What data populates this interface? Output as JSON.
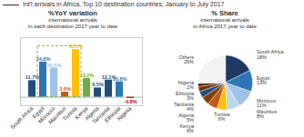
{
  "title": "Int'l arrivals in Africa, Top 10 destination countries, January to July 2017",
  "chart_data": [
    {
      "type": "bar",
      "title": "%YoY variation",
      "subtitle": [
        "international arrivals",
        "in each destination 2017 year to date"
      ],
      "categories": [
        "South Africa",
        "Egypt",
        "Morocco",
        "Mauritius",
        "Tunisia",
        "Kenya",
        "Algeria",
        "Tanzania",
        "Ethiopia",
        "Nigeria"
      ],
      "values": [
        11.7,
        24.8,
        20.5,
        3.6,
        33.5,
        13.2,
        6.5,
        12.1,
        10.8,
        -0.8
      ],
      "value_labels": [
        "11.7%",
        "24.8%",
        "20.5%",
        "3.6%",
        "33.5%",
        "13.2%",
        "6.5%",
        "12.1%",
        "10.8%",
        "-0.8%"
      ],
      "colors": [
        "#1f4e79",
        "#2e75b6",
        "#9dc3e6",
        "#c55a11",
        "#ffc000",
        "#70ad47",
        "#1f4e79",
        "#1f4e79",
        "#2e75b6",
        "#c00000"
      ],
      "ylim": [
        -6,
        42
      ],
      "data_labels": true,
      "tick_labels": "x",
      "annotations": [
        {
          "type": "box",
          "x": [
            "Egypt",
            "Tunisia"
          ],
          "y": [
            0,
            36
          ],
          "color": "#70ad47",
          "line_style": "dashed"
        }
      ]
    },
    {
      "type": "pie",
      "title": "% Share",
      "subtitle": [
        "international arrivals",
        "in Africa 2017 year to date"
      ],
      "categories": [
        "South Africa",
        "Egypt",
        "Morocco",
        "Mauritius",
        "Tunisia",
        "Kenya",
        "Algeria",
        "Tanzania",
        "Ethiopia",
        "Nigeria",
        "Others"
      ],
      "values": [
        18,
        13,
        11,
        8,
        6,
        6,
        5,
        4,
        3,
        2,
        26
      ],
      "value_labels": [
        "18%",
        "13%",
        "11%",
        "8%",
        "6%",
        "6%",
        "5%",
        "4%",
        "3%",
        "2%",
        "26%"
      ],
      "colors": [
        "#1f3864",
        "#2e75b6",
        "#9dc3e6",
        "#bdd7ee",
        "#ffc000",
        "#c55a11",
        "#7b3f00",
        "#1f4e79",
        "#6b2e00",
        "#5a1e00",
        "#f2f2f2"
      ],
      "data_labels": true,
      "tick_labels": false
    }
  ]
}
